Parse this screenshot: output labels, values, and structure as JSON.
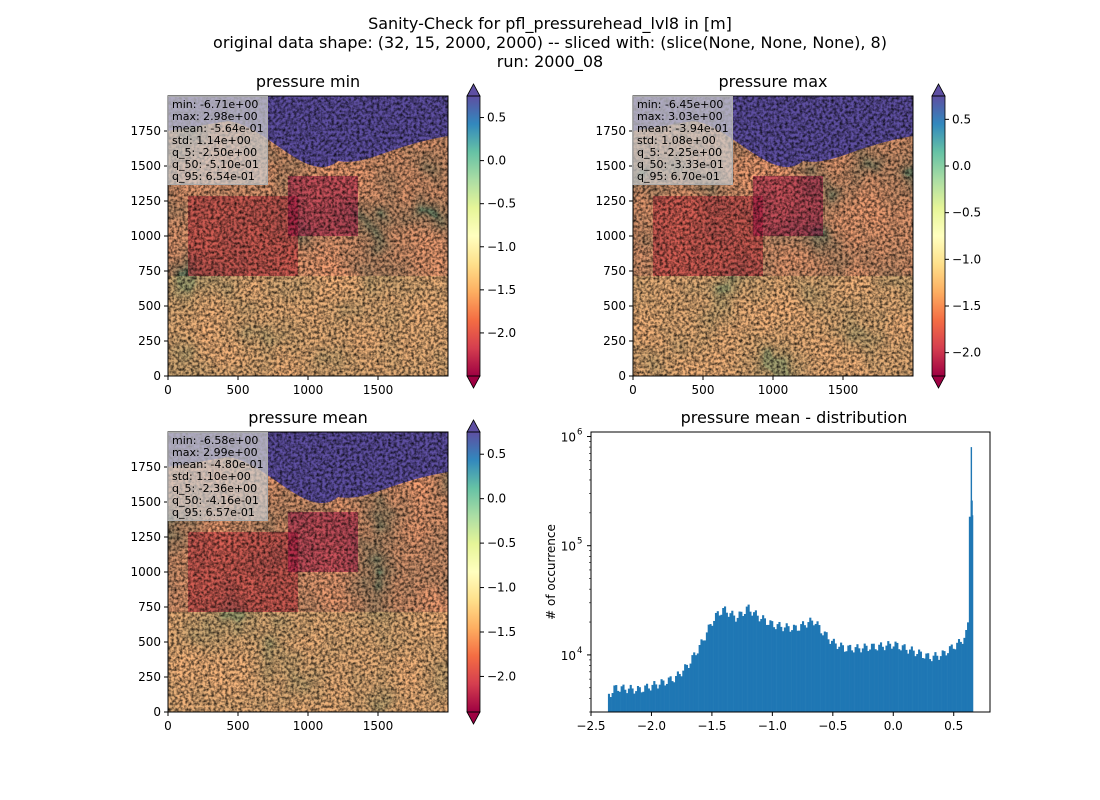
{
  "suptitle": {
    "line1": "Sanity-Check for pfl_pressurehead_lvl8 in [m]",
    "line2": "original data shape: (32, 15, 2000, 2000) -- sliced with: (slice(None, None, None), 8)",
    "line3": "run: 2000_08"
  },
  "colormap": {
    "name": "Spectral",
    "stops": [
      "#9e0142",
      "#d53e4f",
      "#f46d43",
      "#fdae61",
      "#fee08b",
      "#ffffbf",
      "#e6f598",
      "#abdda4",
      "#66c2a5",
      "#3288bd",
      "#5e4fa2"
    ]
  },
  "panels": [
    {
      "title": "pressure min",
      "stats": [
        "min: -6.71e+00",
        "max: 2.98e+00",
        "mean: -5.64e-01",
        "std: 1.14e+00",
        "q_5: -2.50e+00",
        "q_50: -5.10e-01",
        "q_95: 6.54e-01"
      ],
      "colorbar_ticks": [
        "0.5",
        "0.0",
        "−0.5",
        "−1.0",
        "−1.5",
        "−2.0"
      ],
      "colorbar_values": [
        0.5,
        0.0,
        -0.5,
        -1.0,
        -1.5,
        -2.0
      ],
      "colorbar_range": [
        -2.5,
        0.75
      ]
    },
    {
      "title": "pressure max",
      "stats": [
        "min: -6.45e+00",
        "max: 3.03e+00",
        "mean: -3.94e-01",
        "std: 1.08e+00",
        "q_5: -2.25e+00",
        "q_50: -3.33e-01",
        "q_95: 6.70e-01"
      ],
      "colorbar_ticks": [
        "0.5",
        "0.0",
        "−0.5",
        "−1.0",
        "−1.5",
        "−2.0"
      ],
      "colorbar_values": [
        0.5,
        0.0,
        -0.5,
        -1.0,
        -1.5,
        -2.0
      ],
      "colorbar_range": [
        -2.25,
        0.75
      ]
    },
    {
      "title": "pressure mean",
      "stats": [
        "min: -6.58e+00",
        "max: 2.99e+00",
        "mean: -4.80e-01",
        "std: 1.10e+00",
        "q_5: -2.36e+00",
        "q_50: -4.16e-01",
        "q_95: 6.57e-01"
      ],
      "colorbar_ticks": [
        "0.5",
        "0.0",
        "−0.5",
        "−1.0",
        "−1.5",
        "−2.0"
      ],
      "colorbar_values": [
        0.5,
        0.0,
        -0.5,
        -1.0,
        -1.5,
        -2.0
      ],
      "colorbar_range": [
        -2.4,
        0.75
      ]
    }
  ],
  "map_axes": {
    "xticks": [
      "0",
      "500",
      "1000",
      "1500"
    ],
    "xtick_values": [
      0,
      500,
      1000,
      1500
    ],
    "yticks": [
      "0",
      "250",
      "500",
      "750",
      "1000",
      "1250",
      "1500",
      "1750"
    ],
    "ytick_values": [
      0,
      250,
      500,
      750,
      1000,
      1250,
      1500,
      1750
    ],
    "range": [
      0,
      2000
    ]
  },
  "chart_data": {
    "type": "bar",
    "title": "pressure mean - distribution",
    "xlabel": "",
    "ylabel": "# of occurrence",
    "yscale": "log",
    "xlim": [
      -2.5,
      0.8
    ],
    "ylim": [
      3000,
      1100000
    ],
    "color": "#1f77b4",
    "xticks": [
      "−2.5",
      "−2.0",
      "−1.5",
      "−1.0",
      "−0.5",
      "0.0",
      "0.5"
    ],
    "xtick_values": [
      -2.5,
      -2.0,
      -1.5,
      -1.0,
      -0.5,
      0.0,
      0.5
    ],
    "yticks": [
      "10",
      "10",
      "10"
    ],
    "ytick_exponents": [
      "4",
      "5",
      "6"
    ],
    "ytick_values": [
      10000,
      100000,
      1000000
    ],
    "bin_width": 0.015,
    "points": [
      [
        -2.36,
        4200
      ],
      [
        -2.3,
        5000
      ],
      [
        -2.2,
        4900
      ],
      [
        -2.1,
        4800
      ],
      [
        -2.0,
        5200
      ],
      [
        -1.9,
        5600
      ],
      [
        -1.8,
        6200
      ],
      [
        -1.7,
        8000
      ],
      [
        -1.6,
        12000
      ],
      [
        -1.5,
        20000
      ],
      [
        -1.45,
        24000
      ],
      [
        -1.4,
        26000
      ],
      [
        -1.35,
        24000
      ],
      [
        -1.3,
        22000
      ],
      [
        -1.25,
        24000
      ],
      [
        -1.2,
        27000
      ],
      [
        -1.15,
        24000
      ],
      [
        -1.1,
        22000
      ],
      [
        -1.0,
        19000
      ],
      [
        -0.9,
        18000
      ],
      [
        -0.8,
        17500
      ],
      [
        -0.7,
        20000
      ],
      [
        -0.65,
        20500
      ],
      [
        -0.6,
        17000
      ],
      [
        -0.5,
        13000
      ],
      [
        -0.4,
        11500
      ],
      [
        -0.3,
        11500
      ],
      [
        -0.2,
        11800
      ],
      [
        -0.1,
        12000
      ],
      [
        0.0,
        12500
      ],
      [
        0.1,
        11500
      ],
      [
        0.2,
        10500
      ],
      [
        0.3,
        9500
      ],
      [
        0.4,
        10000
      ],
      [
        0.5,
        12000
      ],
      [
        0.55,
        13000
      ],
      [
        0.6,
        15000
      ],
      [
        0.62,
        20000
      ],
      [
        0.64,
        800000
      ],
      [
        0.65,
        190000
      ]
    ]
  }
}
